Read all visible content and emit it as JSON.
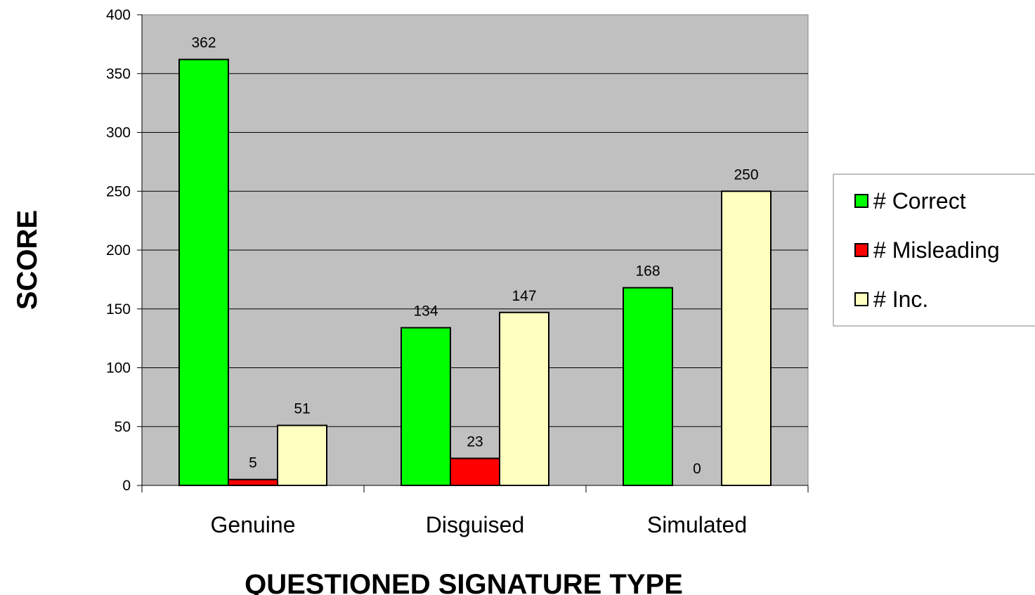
{
  "chart_data": {
    "type": "bar",
    "categories": [
      "Genuine",
      "Disguised",
      "Simulated"
    ],
    "series": [
      {
        "name": "# Correct",
        "values": [
          362,
          134,
          168
        ],
        "color": "#00ff00"
      },
      {
        "name": "# Misleading",
        "values": [
          5,
          23,
          0
        ],
        "color": "#ff0000"
      },
      {
        "name": "# Inc.",
        "values": [
          51,
          147,
          250
        ],
        "color": "#ffffc0"
      }
    ],
    "xlabel": "QUESTIONED SIGNATURE TYPE",
    "ylabel": "SCORE",
    "ylim": [
      0,
      400
    ],
    "yticks": [
      "0",
      "50",
      "100",
      "150",
      "200",
      "250",
      "300",
      "350",
      "400"
    ],
    "grid": true,
    "plot_background": "#c0c0c0",
    "legend_position": "right"
  }
}
